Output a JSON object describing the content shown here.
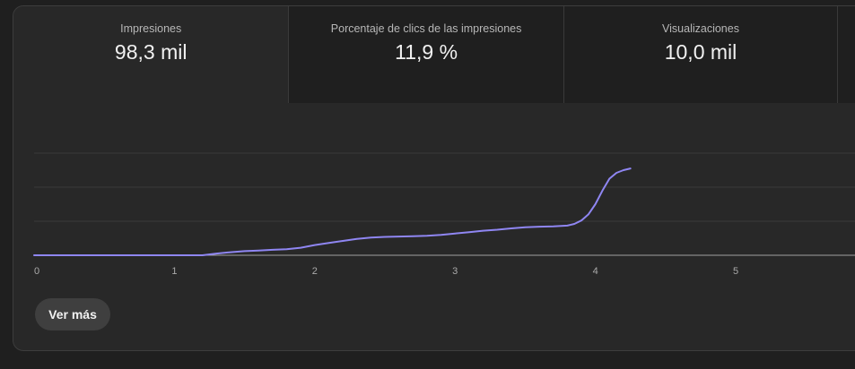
{
  "metrics": {
    "tabs": [
      {
        "label": "Impresiones",
        "value": "98,3 mil"
      },
      {
        "label": "Porcentaje de clics de las impresiones",
        "value": "11,9 %"
      },
      {
        "label": "Visualizaciones",
        "value": "10,0 mil"
      }
    ]
  },
  "colors": {
    "line": "#8f86f2",
    "grid": "#3a3a3a",
    "baseline": "#a0a0a0",
    "tick_text": "#aaaaaa"
  },
  "chart_data": {
    "type": "line",
    "x_ticks": [
      "0",
      "1",
      "2",
      "3",
      "4",
      "5"
    ],
    "xlim": [
      0,
      5.85
    ],
    "ylim": [
      0,
      3
    ],
    "grid": true,
    "series": [
      {
        "x": [
          0,
          0.5,
          1.0,
          1.2,
          1.3,
          1.4,
          1.5,
          1.6,
          1.7,
          1.8,
          1.9,
          2.0,
          2.1,
          2.2,
          2.3,
          2.4,
          2.5,
          2.6,
          2.7,
          2.8,
          2.9,
          3.0,
          3.1,
          3.2,
          3.3,
          3.4,
          3.5,
          3.6,
          3.7,
          3.8,
          3.85,
          3.9,
          3.95,
          4.0,
          4.05,
          4.1,
          4.15,
          4.2,
          4.25
        ],
        "y": [
          0,
          0,
          0,
          0,
          0.05,
          0.09,
          0.12,
          0.14,
          0.16,
          0.18,
          0.22,
          0.3,
          0.36,
          0.42,
          0.48,
          0.52,
          0.54,
          0.55,
          0.56,
          0.57,
          0.6,
          0.64,
          0.68,
          0.72,
          0.75,
          0.79,
          0.82,
          0.84,
          0.85,
          0.87,
          0.92,
          1.02,
          1.2,
          1.5,
          1.9,
          2.25,
          2.42,
          2.5,
          2.55
        ]
      }
    ]
  },
  "actions": {
    "more_label": "Ver más"
  }
}
